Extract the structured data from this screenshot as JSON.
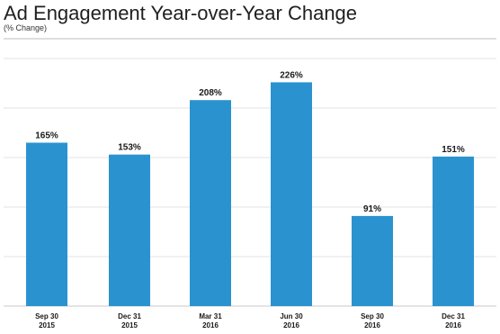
{
  "chart_data": {
    "type": "bar",
    "title": "Ad Engagement Year-over-Year Change",
    "subtitle": "(% Change)",
    "xlabel": "",
    "ylabel": "",
    "categories": [
      [
        "Sep 30",
        "2015"
      ],
      [
        "Dec 31",
        "2015"
      ],
      [
        "Mar 31",
        "2016"
      ],
      [
        "Jun 30",
        "2016"
      ],
      [
        "Sep 30",
        "2016"
      ],
      [
        "Dec 31",
        "2016"
      ]
    ],
    "values": [
      165,
      153,
      208,
      226,
      91,
      151
    ],
    "data_labels": [
      "165%",
      "153%",
      "208%",
      "226%",
      "91%",
      "151%"
    ],
    "ylim": [
      0,
      250
    ],
    "grid": true,
    "legend": "none",
    "colors": {
      "bar": "#2a93cf",
      "grid": "#e3e3e3"
    }
  }
}
